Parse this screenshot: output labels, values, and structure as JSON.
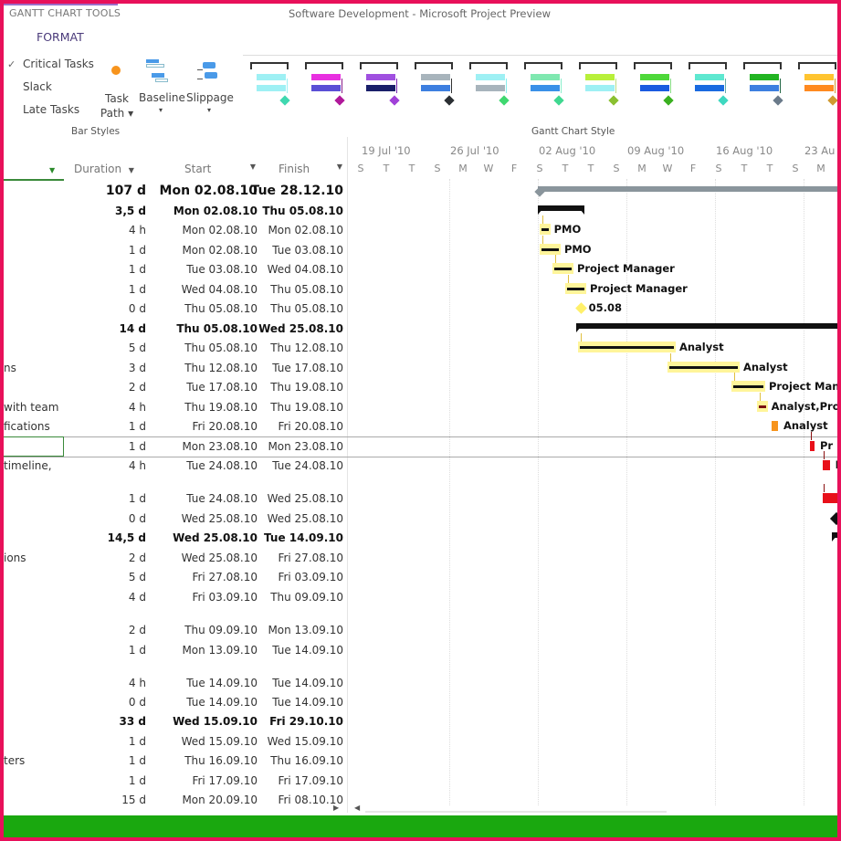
{
  "window": {
    "tools_title": "GANTT CHART TOOLS",
    "app_title": "Software Development - Microsoft Project Preview"
  },
  "ribbon": {
    "tab": "FORMAT",
    "checkboxes": [
      {
        "label": "Critical Tasks",
        "checked": true
      },
      {
        "label": "Slack",
        "checked": false
      },
      {
        "label": "Late Tasks",
        "checked": false
      }
    ],
    "task_path": "Task Path",
    "baseline": "Baseline",
    "slippage": "Slippage",
    "bar_styles_label": "Bar Styles",
    "gantt_chart_style_label": "Gantt Chart Style",
    "styles": [
      {
        "top": "#9ef0f4",
        "bottom": "#9ef0f4",
        "diamond": "#3fd8b0",
        "line": "#9ef0f4"
      },
      {
        "top": "#e830e0",
        "bottom": "#5a4fd6",
        "diamond": "#b0189a",
        "line": "#8a1c8a"
      },
      {
        "top": "#a050e0",
        "bottom": "#1a1f6a",
        "diamond": "#a040d8",
        "line": "#7a2ab0"
      },
      {
        "top": "#a8b4bc",
        "bottom": "#3d7fe0",
        "diamond": "#2b2f33",
        "line": "#333"
      },
      {
        "top": "#9ef0f4",
        "bottom": "#a8b4bc",
        "diamond": "#3fd870",
        "line": "#8ee"
      },
      {
        "top": "#7fe8b0",
        "bottom": "#3a90e8",
        "diamond": "#3fd890",
        "line": "#8ec"
      },
      {
        "top": "#b8f03a",
        "bottom": "#9ef0f4",
        "diamond": "#8ac030",
        "line": "#bd8"
      },
      {
        "top": "#4ed83a",
        "bottom": "#1a5ae0",
        "diamond": "#3ab020",
        "line": "#8d8"
      },
      {
        "top": "#5ee8d0",
        "bottom": "#1a6ae0",
        "diamond": "#3ed8c0",
        "line": "#6aa"
      },
      {
        "top": "#22b422",
        "bottom": "#3d7fe0",
        "diamond": "#6a7a8a",
        "line": "#264"
      },
      {
        "top": "#ffc430",
        "bottom": "#ff8a20",
        "diamond": "#d09a30",
        "line": "#c93"
      }
    ]
  },
  "table": {
    "headers": {
      "duration": "Duration",
      "start": "Start",
      "finish": "Finish"
    },
    "rows": [
      {
        "name": "",
        "duration": "107 d",
        "start": "Mon 02.08.10",
        "finish": "Tue 28.12.10",
        "bold": true,
        "bar": "project",
        "label": ""
      },
      {
        "name": "",
        "duration": "3,5 d",
        "start": "Mon 02.08.10",
        "finish": "Thu 05.08.10",
        "bold": true,
        "bar": "summary",
        "label": ""
      },
      {
        "name": "",
        "duration": "4 h",
        "start": "Mon 02.08.10",
        "finish": "Mon 02.08.10",
        "bar": "critical",
        "label": "PMO"
      },
      {
        "name": "",
        "duration": "1 d",
        "start": "Mon 02.08.10",
        "finish": "Tue 03.08.10",
        "bar": "critical",
        "label": "PMO"
      },
      {
        "name": "",
        "duration": "1 d",
        "start": "Tue 03.08.10",
        "finish": "Wed 04.08.10",
        "bar": "critical",
        "label": "Project Manager"
      },
      {
        "name": "",
        "duration": "1 d",
        "start": "Wed 04.08.10",
        "finish": "Thu 05.08.10",
        "bar": "critical",
        "label": "Project Manager"
      },
      {
        "name": "",
        "duration": "0 d",
        "start": "Thu 05.08.10",
        "finish": "Thu 05.08.10",
        "bar": "milestone-yellow",
        "label": "05.08"
      },
      {
        "name": "",
        "duration": "14 d",
        "start": "Thu 05.08.10",
        "finish": "Wed 25.08.10",
        "bold": true,
        "bar": "summary",
        "label": ""
      },
      {
        "name": "",
        "duration": "5 d",
        "start": "Thu 05.08.10",
        "finish": "Thu 12.08.10",
        "bar": "critical",
        "label": "Analyst"
      },
      {
        "name": "ns",
        "duration": "3 d",
        "start": "Thu 12.08.10",
        "finish": "Tue 17.08.10",
        "bar": "critical",
        "label": "Analyst"
      },
      {
        "name": "",
        "duration": "2 d",
        "start": "Tue 17.08.10",
        "finish": "Thu 19.08.10",
        "bar": "critical",
        "label": "Project Mana"
      },
      {
        "name": "with team",
        "duration": "4 h",
        "start": "Thu 19.08.10",
        "finish": "Thu 19.08.10",
        "bar": "critical-dark",
        "label": "Analyst,Proj"
      },
      {
        "name": "fications",
        "duration": "1 d",
        "start": "Fri 20.08.10",
        "finish": "Fri 20.08.10",
        "bar": "orange",
        "label": "Analyst"
      },
      {
        "name": "",
        "duration": "1 d",
        "start": "Mon 23.08.10",
        "finish": "Mon 23.08.10",
        "bar": "red",
        "label": "Pr",
        "selected": true
      },
      {
        "name": "timeline,",
        "duration": "4 h",
        "start": "Tue 24.08.10",
        "finish": "Tue 24.08.10",
        "bar": "red",
        "label": "P"
      },
      {
        "name": "",
        "duration": "1 d",
        "start": "Tue 24.08.10",
        "finish": "Wed 25.08.10",
        "bar": "red",
        "label": ""
      },
      {
        "name": "",
        "duration": "0 d",
        "start": "Wed 25.08.10",
        "finish": "Wed 25.08.10",
        "bar": "milestone",
        "label": ""
      },
      {
        "name": "",
        "duration": "14,5 d",
        "start": "Wed 25.08.10",
        "finish": "Tue 14.09.10",
        "bold": true,
        "bar": "summary",
        "label": ""
      },
      {
        "name": "ions",
        "duration": "2 d",
        "start": "Wed 25.08.10",
        "finish": "Fri 27.08.10"
      },
      {
        "name": "",
        "duration": "5 d",
        "start": "Fri 27.08.10",
        "finish": "Fri 03.09.10"
      },
      {
        "name": "",
        "duration": "4 d",
        "start": "Fri 03.09.10",
        "finish": "Thu 09.09.10"
      },
      {
        "name": "",
        "duration": "2 d",
        "start": "Thu 09.09.10",
        "finish": "Mon 13.09.10"
      },
      {
        "name": "",
        "duration": "1 d",
        "start": "Mon 13.09.10",
        "finish": "Tue 14.09.10"
      },
      {
        "name": "",
        "duration": "4 h",
        "start": "Tue 14.09.10",
        "finish": "Tue 14.09.10"
      },
      {
        "name": "",
        "duration": "0 d",
        "start": "Tue 14.09.10",
        "finish": "Tue 14.09.10"
      },
      {
        "name": "",
        "duration": "33 d",
        "start": "Wed 15.09.10",
        "finish": "Fri 29.10.10",
        "bold": true
      },
      {
        "name": "",
        "duration": "1 d",
        "start": "Wed 15.09.10",
        "finish": "Wed 15.09.10"
      },
      {
        "name": "ters",
        "duration": "1 d",
        "start": "Thu 16.09.10",
        "finish": "Thu 16.09.10"
      },
      {
        "name": "",
        "duration": "1 d",
        "start": "Fri 17.09.10",
        "finish": "Fri 17.09.10"
      },
      {
        "name": "",
        "duration": "15 d",
        "start": "Mon 20.09.10",
        "finish": "Fri 08.10.10"
      }
    ]
  },
  "timescale": {
    "weeks": [
      "19 Jul '10",
      "26 Jul '10",
      "02 Aug '10",
      "09 Aug '10",
      "16 Aug '10",
      "23 Au"
    ],
    "days": [
      "S",
      "T",
      "T",
      "S",
      "M",
      "W",
      "F",
      "S",
      "T",
      "T",
      "S",
      "M",
      "W",
      "F",
      "S",
      "T",
      "T",
      "S",
      "M"
    ]
  },
  "colors": {
    "frame": "#e8105a",
    "status_bar": "#1aa80f",
    "critical_highlight": "#fff59a",
    "critical_red": "#e8101a",
    "orange": "#f7941d"
  }
}
